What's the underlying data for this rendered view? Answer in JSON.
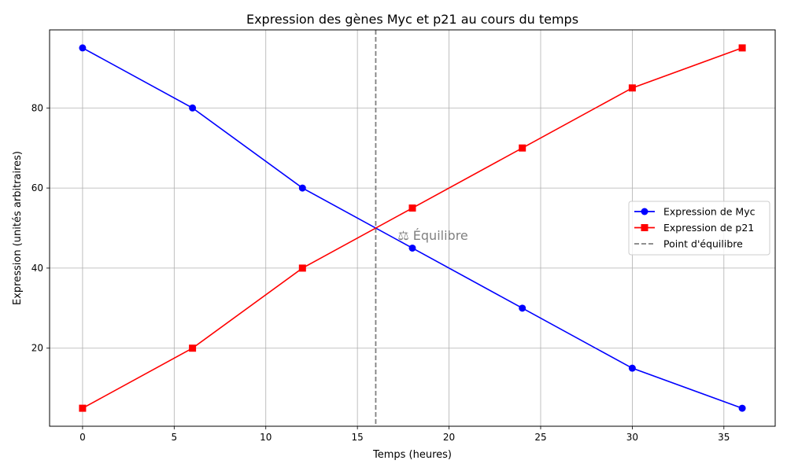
{
  "chart_data": {
    "type": "line",
    "title": "Expression des gènes Myc et p21 au cours du temps",
    "xlabel": "Temps (heures)",
    "ylabel": "Expression (unités arbitraires)",
    "x": [
      0,
      6,
      12,
      18,
      24,
      30,
      36
    ],
    "xlim": [
      -1.8,
      37.8
    ],
    "ylim": [
      0.5,
      99.5
    ],
    "xticks": [
      0,
      5,
      10,
      15,
      20,
      25,
      30,
      35
    ],
    "yticks": [
      20,
      40,
      60,
      80
    ],
    "grid": true,
    "legend_position": "center-right",
    "series": [
      {
        "name": "Expression de Myc",
        "values": [
          95,
          80,
          60,
          45,
          30,
          15,
          5
        ],
        "color": "#0000ff",
        "marker": "circle"
      },
      {
        "name": "Expression de p21",
        "values": [
          5,
          20,
          40,
          55,
          70,
          85,
          95
        ],
        "color": "#ff0000",
        "marker": "square"
      }
    ],
    "vline": {
      "x": 16,
      "label": "Point d'équilibre",
      "color": "#808080",
      "style": "dashed"
    },
    "annotations": [
      {
        "text": "⚖ Équilibre",
        "x": 17.2,
        "y": 48,
        "color": "#808080"
      }
    ]
  }
}
